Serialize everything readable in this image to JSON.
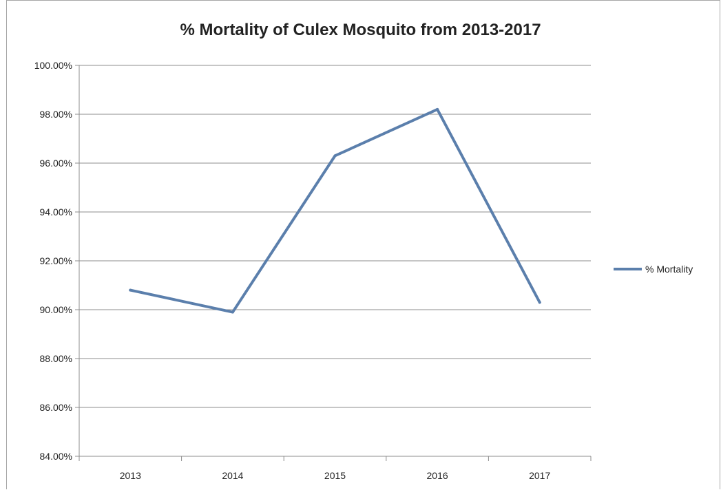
{
  "chart_data": {
    "type": "line",
    "title": "% Mortality of Culex Mosquito from 2013-2017",
    "xlabel": "",
    "ylabel": "",
    "categories": [
      "2013",
      "2014",
      "2015",
      "2016",
      "2017"
    ],
    "series": [
      {
        "name": "% Mortality",
        "values": [
          90.8,
          89.9,
          96.3,
          98.2,
          90.3
        ],
        "color": "#5b7fac"
      }
    ],
    "ylim": [
      84,
      100
    ],
    "yticks": [
      84,
      86,
      88,
      90,
      92,
      94,
      96,
      98,
      100
    ],
    "ytick_labels": [
      "84.00%",
      "86.00%",
      "88.00%",
      "90.00%",
      "92.00%",
      "94.00%",
      "96.00%",
      "98.00%",
      "100.00%"
    ],
    "grid": "horizontal",
    "legend_position": "right"
  }
}
